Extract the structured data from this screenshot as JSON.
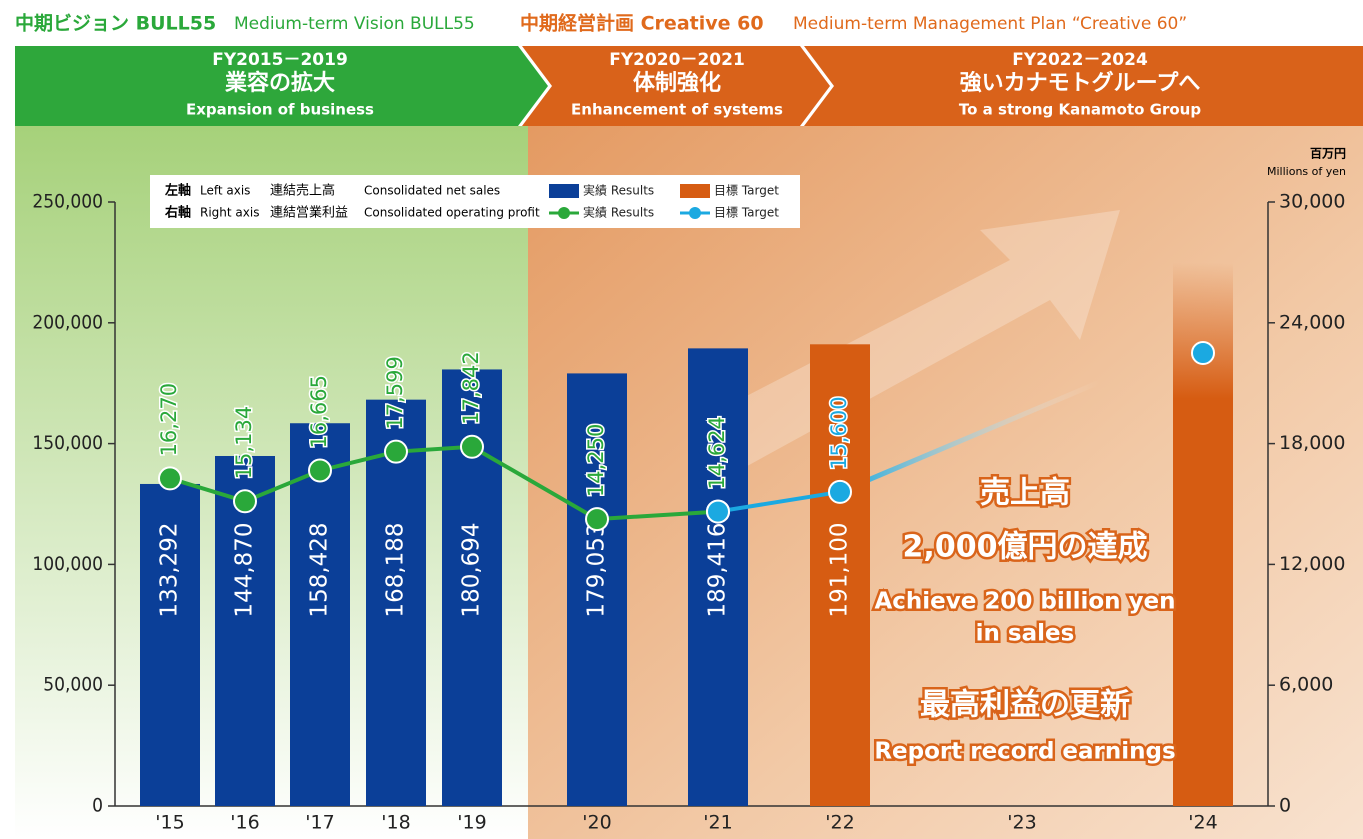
{
  "header": {
    "vision_jp": "中期ビジョン BULL55",
    "vision_en": "Medium-term Vision BULL55",
    "plan_jp": "中期経営計画 Creative 60",
    "plan_en": "Medium-term Management Plan “Creative 60”"
  },
  "phases": [
    {
      "period": "FY2015－2019",
      "title": "業容の拡大",
      "subtitle": "Expansion of business"
    },
    {
      "period": "FY2020－2021",
      "title": "体制強化",
      "subtitle": "Enhancement of systems"
    },
    {
      "period": "FY2022－2024",
      "title": "強いカナモトグループへ",
      "subtitle": "To a strong Kanamoto Group"
    }
  ],
  "chart_data": {
    "type": "bar",
    "categories": [
      "'15",
      "'16",
      "'17",
      "'18",
      "'19",
      "'20",
      "'21",
      "'22",
      "'23",
      "'24"
    ],
    "series": [
      {
        "name": "実績 Results",
        "type": "bar",
        "color": "#0b3f98",
        "values": [
          133292,
          144870,
          158428,
          168188,
          180694,
          179053,
          189416,
          null,
          null,
          null
        ],
        "value_labels": [
          "133,292",
          "144,870",
          "158,428",
          "168,188",
          "180,694",
          "179,053",
          "189,416",
          null,
          null,
          null
        ]
      },
      {
        "name": "目標 Target",
        "type": "bar",
        "color": "#d65c12",
        "values": [
          null,
          null,
          null,
          null,
          null,
          null,
          null,
          191100,
          null,
          200000
        ],
        "value_labels": [
          null,
          null,
          null,
          null,
          null,
          null,
          null,
          "191,100",
          null,
          null
        ]
      },
      {
        "name": "実績 Results",
        "type": "line",
        "axis": "y2",
        "color": "#2aa83a",
        "values": [
          16270,
          15134,
          16665,
          17599,
          17842,
          14250,
          14624,
          null,
          null,
          null
        ],
        "value_labels": [
          "16,270",
          "15,134",
          "16,665",
          "17,599",
          "17,842",
          "14,250",
          "14,624",
          null,
          null,
          null
        ]
      },
      {
        "name": "目標 Target",
        "type": "line",
        "axis": "y2",
        "color": "#1ba9e1",
        "values": [
          null,
          null,
          null,
          null,
          null,
          null,
          14624,
          15600,
          null,
          22500
        ],
        "value_labels": [
          null,
          null,
          null,
          null,
          null,
          null,
          null,
          "15,600",
          null,
          null
        ]
      }
    ],
    "ylim": [
      0,
      250000
    ],
    "yticks": [
      0,
      {
        "value": 50000,
        "label": "50,000"
      },
      {
        "value": 100000,
        "label": "100,000"
      },
      {
        "value": 150000,
        "label": "150,000"
      },
      {
        "value": 200000,
        "label": "200,000"
      },
      {
        "value": 250000,
        "label": "250,000"
      }
    ],
    "y2lim": [
      0,
      30000
    ],
    "y2ticks": [
      0,
      {
        "value": 6000,
        "label": "6,000"
      },
      {
        "value": 12000,
        "label": "12,000"
      },
      {
        "value": 18000,
        "label": "18,000"
      },
      {
        "value": 24000,
        "label": "24,000"
      },
      {
        "value": 30000,
        "label": "30,000"
      }
    ],
    "legend": {
      "left_axis": "左軸",
      "left_axis_en": "Left axis",
      "left_metric": "連結売上高",
      "left_metric_en": "Consolidated net sales",
      "right_axis": "右軸",
      "right_axis_en": "Right axis",
      "right_metric": "連結営業利益",
      "right_metric_en": "Consolidated operating profit"
    },
    "unit": "百万円",
    "unit_en": "Millions of yen",
    "annotations": [
      "売上高",
      "2,000億円の達成",
      "Achieve 200 billion yen",
      "in sales",
      "最高利益の更新",
      "Report record earnings"
    ]
  }
}
